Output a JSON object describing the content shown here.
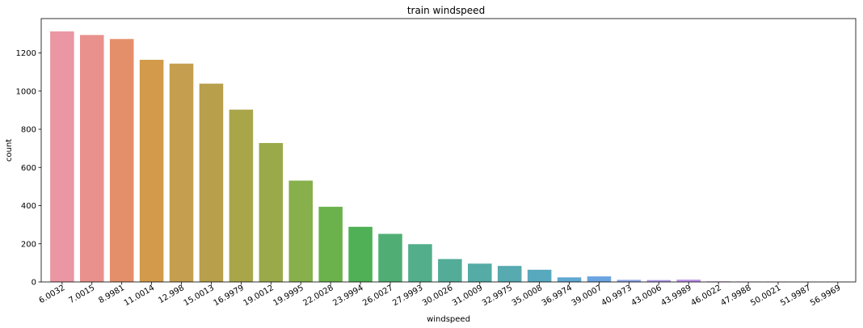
{
  "chart_data": {
    "type": "bar",
    "title": "train windspeed",
    "xlabel": "windspeed",
    "ylabel": "count",
    "categories": [
      "6.0032",
      "7.0015",
      "8.9981",
      "11.0014",
      "12.998",
      "15.0013",
      "16.9979",
      "19.0012",
      "19.9995",
      "22.0028",
      "23.9994",
      "26.0027",
      "27.9993",
      "30.0026",
      "31.0009",
      "32.9975",
      "35.0008",
      "36.9974",
      "39.0007",
      "40.9973",
      "43.0006",
      "43.9989",
      "46.0022",
      "47.9988",
      "50.0021",
      "51.9987",
      "56.9969"
    ],
    "values": [
      1313,
      1294,
      1273,
      1164,
      1144,
      1039,
      903,
      728,
      531,
      394,
      289,
      252,
      198,
      120,
      96,
      84,
      64,
      24,
      29,
      11,
      10,
      12,
      3,
      2,
      2,
      1,
      1
    ],
    "colors": [
      "#ea96a3",
      "#e9918c",
      "#e48f69",
      "#d29a4a",
      "#c59f4f",
      "#b79f4b",
      "#a9a64a",
      "#9aaa4b",
      "#87af4b",
      "#6cb24c",
      "#4fb055",
      "#50ae74",
      "#52ae8b",
      "#53ac98",
      "#55aba5",
      "#56aab0",
      "#58a9bd",
      "#5fa8d2",
      "#6aa4e0",
      "#8ea2e6",
      "#ac98e6",
      "#bb8fe7",
      "#cc86e6",
      "#db81dc",
      "#e287c9",
      "#e48ab9",
      "#e68ea8"
    ],
    "yticks": [
      0,
      200,
      400,
      600,
      800,
      1000,
      1200
    ],
    "ylim": [
      0,
      1380
    ],
    "grid": false
  }
}
